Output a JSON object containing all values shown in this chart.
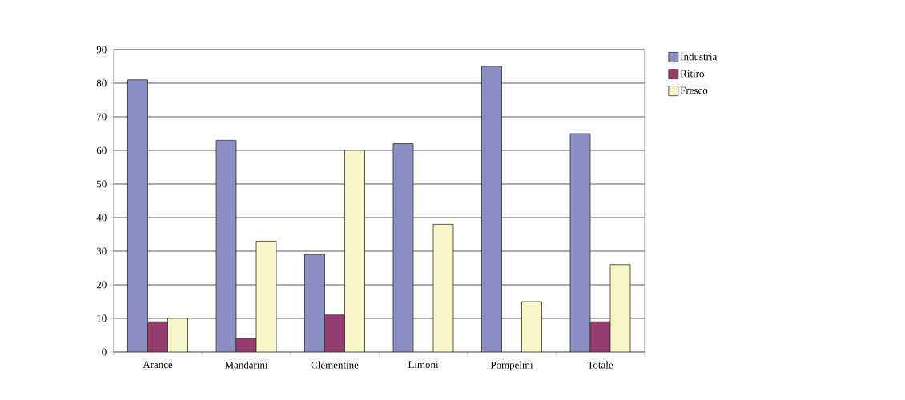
{
  "chart_data": {
    "type": "bar",
    "categories": [
      "Arance",
      "Mandarini",
      "Clementine",
      "Limoni",
      "Pompelmi",
      "Totale"
    ],
    "series": [
      {
        "name": "Industria",
        "color": "#8b8fc4",
        "values": [
          81,
          63,
          29,
          62,
          85,
          65
        ]
      },
      {
        "name": "Ritiro",
        "color": "#963c6e",
        "values": [
          9,
          4,
          11,
          null,
          null,
          9
        ]
      },
      {
        "name": "Fresco",
        "color": "#f9f7c8",
        "values": [
          10,
          33,
          60,
          38,
          15,
          26
        ]
      }
    ],
    "ylim": [
      0,
      90
    ],
    "yticks": [
      0,
      10,
      20,
      30,
      40,
      50,
      60,
      70,
      80,
      90
    ],
    "grid": "y",
    "legend": "right"
  }
}
